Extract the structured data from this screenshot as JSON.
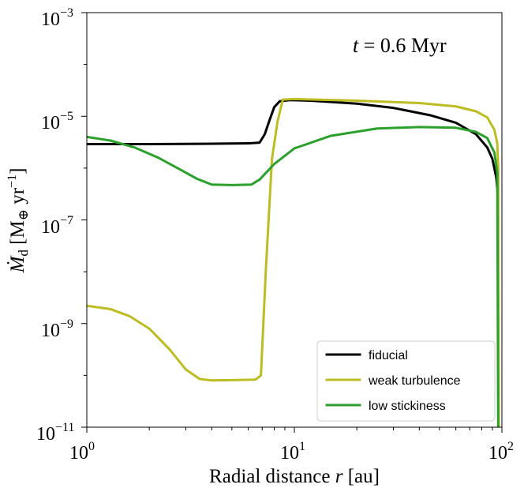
{
  "chart_data": {
    "type": "line",
    "xscale": "log",
    "yscale": "log",
    "xlim": [
      1,
      100
    ],
    "ylim": [
      1e-11,
      0.001
    ],
    "xlabel": {
      "main": "Radial distance ",
      "var": "r",
      "unit": " [au]"
    },
    "ylabel": {
      "var": "Ṁ",
      "sub": "d",
      "unit_open": " [M",
      "unit_sym": "⊕",
      "unit_rest": " yr",
      "unit_exp": "−1",
      "unit_close": "]"
    },
    "annotation": {
      "var": "t",
      "rest": " = 0.6 Myr"
    },
    "x_ticks": [
      {
        "value": 1,
        "base": "10",
        "exp": "0"
      },
      {
        "value": 10,
        "base": "10",
        "exp": "1"
      },
      {
        "value": 100,
        "base": "10",
        "exp": "2"
      }
    ],
    "y_ticks": [
      {
        "value": 1e-11,
        "base": "10",
        "exp": "−11"
      },
      {
        "value": 1e-09,
        "base": "10",
        "exp": "−9"
      },
      {
        "value": 1e-07,
        "base": "10",
        "exp": "−7"
      },
      {
        "value": 1e-05,
        "base": "10",
        "exp": "−5"
      },
      {
        "value": 0.001,
        "base": "10",
        "exp": "−3"
      }
    ],
    "legend": {
      "position": "lower-right"
    },
    "series": [
      {
        "name": "fiducial",
        "color": "#000000",
        "points": [
          [
            1,
            2.9e-06
          ],
          [
            2,
            2.9e-06
          ],
          [
            4,
            2.95e-06
          ],
          [
            6,
            3e-06
          ],
          [
            6.8,
            3.1e-06
          ],
          [
            7.2,
            4.5e-06
          ],
          [
            7.6,
            8.5e-06
          ],
          [
            8.0,
            1.5e-05
          ],
          [
            8.5,
            1.95e-05
          ],
          [
            9.5,
            2.05e-05
          ],
          [
            12,
            2e-05
          ],
          [
            20,
            1.75e-05
          ],
          [
            30,
            1.45e-05
          ],
          [
            45,
            1.05e-05
          ],
          [
            60,
            7.5e-06
          ],
          [
            75,
            4.5e-06
          ],
          [
            85,
            2.5e-06
          ],
          [
            90,
            1.5e-06
          ],
          [
            94,
            6.5e-07
          ],
          [
            96,
            2.6e-07
          ]
        ]
      },
      {
        "name": "weak turbulence",
        "color": "#bcbd22",
        "points": [
          [
            1,
            2.2e-09
          ],
          [
            1.3,
            1.9e-09
          ],
          [
            1.6,
            1.4e-09
          ],
          [
            2,
            8e-10
          ],
          [
            2.5,
            3.2e-10
          ],
          [
            3,
            1.3e-10
          ],
          [
            3.5,
            8.5e-11
          ],
          [
            4,
            8e-11
          ],
          [
            5,
            8.1e-11
          ],
          [
            6.5,
            8.3e-11
          ],
          [
            6.9,
            1e-10
          ],
          [
            7.3,
            1.2e-08
          ],
          [
            7.8,
            1.5e-06
          ],
          [
            8.3,
            8e-06
          ],
          [
            8.8,
            2.1e-05
          ],
          [
            10,
            2.15e-05
          ],
          [
            20,
            2e-05
          ],
          [
            40,
            1.8e-05
          ],
          [
            60,
            1.55e-05
          ],
          [
            75,
            1.25e-05
          ],
          [
            85,
            9.5e-06
          ],
          [
            92,
            5.5e-06
          ],
          [
            95,
            3e-06
          ],
          [
            96,
            1e-06
          ],
          [
            96.5,
            1e-11
          ]
        ]
      },
      {
        "name": "low stickiness",
        "color": "#2ca02c",
        "points": [
          [
            1,
            4e-06
          ],
          [
            1.3,
            3.4e-06
          ],
          [
            1.7,
            2.5e-06
          ],
          [
            2.2,
            1.6e-06
          ],
          [
            2.8,
            9.5e-07
          ],
          [
            3.4,
            6.2e-07
          ],
          [
            4,
            4.8e-07
          ],
          [
            5,
            4.7e-07
          ],
          [
            6.2,
            4.8e-07
          ],
          [
            6.8,
            6e-07
          ],
          [
            8,
            1.2e-06
          ],
          [
            10,
            2.4e-06
          ],
          [
            15,
            4.2e-06
          ],
          [
            25,
            5.8e-06
          ],
          [
            40,
            6.2e-06
          ],
          [
            60,
            6e-06
          ],
          [
            75,
            5e-06
          ],
          [
            85,
            3.8e-06
          ],
          [
            92,
            2e-06
          ],
          [
            95,
            8e-07
          ],
          [
            96,
            1e-11
          ]
        ]
      }
    ]
  }
}
